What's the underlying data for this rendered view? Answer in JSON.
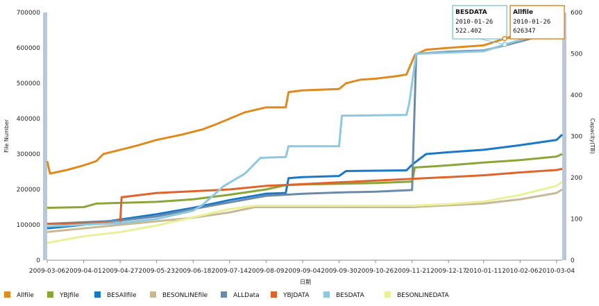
{
  "chart_data": {
    "type": "line",
    "xlabel": "日期",
    "ylabel_left": "File Number",
    "ylabel_right": "Capacity(TB)",
    "ylim_left": [
      0,
      700000
    ],
    "ylim_right": [
      0,
      600
    ],
    "yticks_left": [
      "0",
      "100000",
      "200000",
      "300000",
      "400000",
      "500000",
      "600000",
      "700000"
    ],
    "yticks_right": [
      "0",
      "100",
      "200",
      "300",
      "400",
      "500",
      "600"
    ],
    "xticks": [
      "2009-03-06",
      "2009-04-01",
      "2009-04-27",
      "2009-05-23",
      "2009-06-18",
      "2009-07-14",
      "2009-08-09",
      "2009-09-04",
      "2009-09-30",
      "2009-10-26",
      "2009-11-21",
      "2009-12-17",
      "2010-01-11",
      "2010-02-06",
      "2010-03-04"
    ],
    "x_range": [
      "2009-03-06",
      "2010-03-08"
    ],
    "series": [
      {
        "name": "Allfile",
        "color": "#e08a1e",
        "axis": "left",
        "points": [
          [
            "2009-03-06",
            280000
          ],
          [
            "2009-03-08",
            245000
          ],
          [
            "2009-03-20",
            255000
          ],
          [
            "2009-04-01",
            268000
          ],
          [
            "2009-04-10",
            280000
          ],
          [
            "2009-04-15",
            300000
          ],
          [
            "2009-04-27",
            312000
          ],
          [
            "2009-05-10",
            325000
          ],
          [
            "2009-05-23",
            340000
          ],
          [
            "2009-06-10",
            355000
          ],
          [
            "2009-06-25",
            370000
          ],
          [
            "2009-07-05",
            385000
          ],
          [
            "2009-07-14",
            400000
          ],
          [
            "2009-07-25",
            418000
          ],
          [
            "2009-08-09",
            432000
          ],
          [
            "2009-08-23",
            432000
          ],
          [
            "2009-08-25",
            475000
          ],
          [
            "2009-09-04",
            480000
          ],
          [
            "2009-09-30",
            484000
          ],
          [
            "2009-10-05",
            500000
          ],
          [
            "2009-10-15",
            510000
          ],
          [
            "2009-10-26",
            513000
          ],
          [
            "2009-11-10",
            520000
          ],
          [
            "2009-11-17",
            525000
          ],
          [
            "2009-11-23",
            580000
          ],
          [
            "2009-12-01",
            595000
          ],
          [
            "2009-12-17",
            600000
          ],
          [
            "2010-01-11",
            607000
          ],
          [
            "2010-01-26",
            626347
          ],
          [
            "2010-02-15",
            650000
          ],
          [
            "2010-03-04",
            670000
          ],
          [
            "2010-03-08",
            680000
          ]
        ]
      },
      {
        "name": "YBJfile",
        "color": "#8aa636",
        "axis": "left",
        "points": [
          [
            "2009-03-06",
            148000
          ],
          [
            "2009-04-01",
            150000
          ],
          [
            "2009-04-10",
            160000
          ],
          [
            "2009-05-23",
            165000
          ],
          [
            "2009-06-18",
            172000
          ],
          [
            "2009-07-14",
            185000
          ],
          [
            "2009-08-09",
            200000
          ],
          [
            "2009-08-23",
            212000
          ],
          [
            "2009-09-04",
            214000
          ],
          [
            "2009-10-26",
            218000
          ],
          [
            "2009-11-21",
            222000
          ],
          [
            "2009-11-23",
            262000
          ],
          [
            "2009-12-17",
            268000
          ],
          [
            "2010-01-11",
            276000
          ],
          [
            "2010-02-06",
            283000
          ],
          [
            "2010-03-04",
            293000
          ],
          [
            "2010-03-08",
            300000
          ]
        ]
      },
      {
        "name": "BESAllfile",
        "color": "#1a78c8",
        "axis": "left",
        "points": [
          [
            "2009-03-06",
            90000
          ],
          [
            "2009-04-01",
            100000
          ],
          [
            "2009-04-27",
            115000
          ],
          [
            "2009-05-23",
            130000
          ],
          [
            "2009-06-18",
            148000
          ],
          [
            "2009-07-14",
            170000
          ],
          [
            "2009-08-09",
            188000
          ],
          [
            "2009-08-23",
            190000
          ],
          [
            "2009-08-25",
            232000
          ],
          [
            "2009-09-04",
            235000
          ],
          [
            "2009-09-30",
            238000
          ],
          [
            "2009-10-05",
            252000
          ],
          [
            "2009-11-17",
            254000
          ],
          [
            "2009-11-21",
            270000
          ],
          [
            "2009-12-01",
            300000
          ],
          [
            "2009-12-17",
            305000
          ],
          [
            "2010-01-11",
            312000
          ],
          [
            "2010-02-06",
            325000
          ],
          [
            "2010-03-04",
            340000
          ],
          [
            "2010-03-08",
            355000
          ]
        ]
      },
      {
        "name": "BESONLINEfile",
        "color": "#c8b896",
        "axis": "left",
        "points": [
          [
            "2009-03-06",
            80000
          ],
          [
            "2009-04-01",
            90000
          ],
          [
            "2009-04-27",
            100000
          ],
          [
            "2009-05-23",
            110000
          ],
          [
            "2009-06-18",
            120000
          ],
          [
            "2009-07-14",
            135000
          ],
          [
            "2009-08-01",
            150000
          ],
          [
            "2009-09-04",
            150000
          ],
          [
            "2009-11-21",
            150000
          ],
          [
            "2009-12-17",
            155000
          ],
          [
            "2010-01-11",
            160000
          ],
          [
            "2010-02-06",
            172000
          ],
          [
            "2010-03-04",
            190000
          ],
          [
            "2010-03-08",
            200000
          ]
        ]
      },
      {
        "name": "ALLData",
        "color": "#6a8aa8",
        "axis": "right",
        "points": [
          [
            "2009-03-06",
            88
          ],
          [
            "2009-04-01",
            92
          ],
          [
            "2009-04-27",
            96
          ],
          [
            "2009-05-23",
            106
          ],
          [
            "2009-06-18",
            124
          ],
          [
            "2009-07-14",
            140
          ],
          [
            "2009-08-09",
            156
          ],
          [
            "2009-09-04",
            161
          ],
          [
            "2009-09-30",
            164
          ],
          [
            "2009-10-26",
            166
          ],
          [
            "2009-11-21",
            170
          ],
          [
            "2009-11-24",
            500
          ],
          [
            "2009-12-17",
            505
          ],
          [
            "2010-01-11",
            508
          ],
          [
            "2010-01-26",
            520
          ],
          [
            "2010-02-15",
            538
          ],
          [
            "2010-03-04",
            552
          ],
          [
            "2010-03-08",
            560
          ]
        ]
      },
      {
        "name": "YBJDATA",
        "color": "#e0642a",
        "axis": "left",
        "points": [
          [
            "2009-03-06",
            103000
          ],
          [
            "2009-04-27",
            105000
          ],
          [
            "2009-04-28",
            178000
          ],
          [
            "2009-05-23",
            190000
          ],
          [
            "2009-06-18",
            195000
          ],
          [
            "2009-07-14",
            200000
          ],
          [
            "2009-08-09",
            210000
          ],
          [
            "2009-09-04",
            215000
          ],
          [
            "2009-09-30",
            220000
          ],
          [
            "2009-10-26",
            225000
          ],
          [
            "2009-11-21",
            230000
          ],
          [
            "2009-12-17",
            235000
          ],
          [
            "2010-01-11",
            240000
          ],
          [
            "2010-02-06",
            248000
          ],
          [
            "2010-03-04",
            255000
          ],
          [
            "2010-03-08",
            258000
          ]
        ]
      },
      {
        "name": "BESDATA",
        "color": "#8cc8e0",
        "axis": "right",
        "points": [
          [
            "2009-03-06",
            82
          ],
          [
            "2009-04-01",
            86
          ],
          [
            "2009-04-27",
            90
          ],
          [
            "2009-05-23",
            100
          ],
          [
            "2009-06-18",
            120
          ],
          [
            "2009-06-25",
            135
          ],
          [
            "2009-07-10",
            180
          ],
          [
            "2009-07-25",
            210
          ],
          [
            "2009-08-05",
            248
          ],
          [
            "2009-08-23",
            250
          ],
          [
            "2009-08-25",
            276
          ],
          [
            "2009-09-30",
            276
          ],
          [
            "2009-10-02",
            350
          ],
          [
            "2009-11-17",
            352
          ],
          [
            "2009-11-19",
            380
          ],
          [
            "2009-11-24",
            500
          ],
          [
            "2009-12-17",
            503
          ],
          [
            "2010-01-11",
            506
          ],
          [
            "2010-01-26",
            522.402
          ],
          [
            "2010-02-15",
            542
          ],
          [
            "2010-03-04",
            560
          ],
          [
            "2010-03-08",
            572
          ]
        ]
      },
      {
        "name": "BESONLINEDATA",
        "color": "#eaf09a",
        "axis": "right",
        "points": [
          [
            "2009-03-06",
            42
          ],
          [
            "2009-04-01",
            58
          ],
          [
            "2009-04-27",
            68
          ],
          [
            "2009-05-23",
            84
          ],
          [
            "2009-06-18",
            104
          ],
          [
            "2009-07-14",
            124
          ],
          [
            "2009-08-01",
            132
          ],
          [
            "2009-09-04",
            132
          ],
          [
            "2009-11-21",
            132
          ],
          [
            "2009-12-17",
            136
          ],
          [
            "2010-01-11",
            142
          ],
          [
            "2010-02-06",
            158
          ],
          [
            "2010-03-04",
            180
          ],
          [
            "2010-03-08",
            190
          ]
        ]
      }
    ],
    "tooltips": [
      {
        "series": "BESDATA",
        "title": "BESDATA",
        "date": "2010-01-26",
        "value": "522.402",
        "border": "#8cc8e0"
      },
      {
        "series": "Allfile",
        "title": "Allfile",
        "date": "2010-01-26",
        "value": "626347",
        "border": "#e08a1e"
      }
    ],
    "legend": [
      "Allfile",
      "YBJfile",
      "BESAllfile",
      "BESONLINEfile",
      "ALLData",
      "YBJDATA",
      "BESDATA",
      "BESONLINEDATA"
    ],
    "legend_position": "bottom",
    "grid": false
  }
}
